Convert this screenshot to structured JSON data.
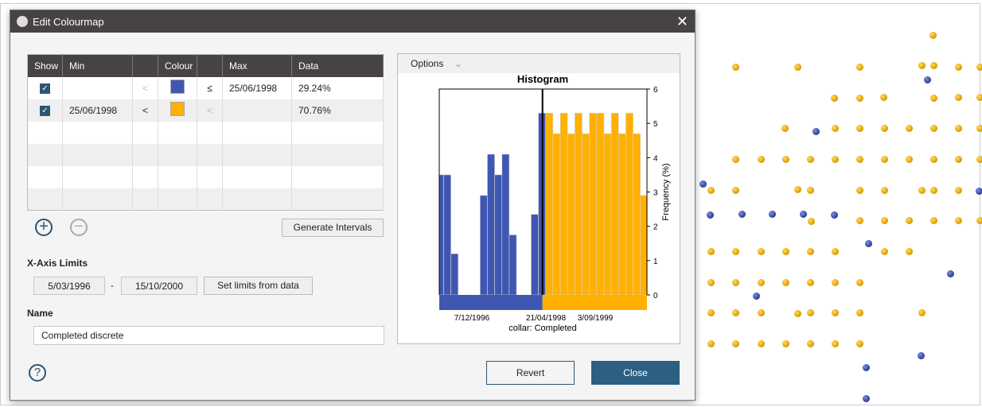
{
  "dialog": {
    "title": "Edit Colourmap",
    "close_label": "✕"
  },
  "table": {
    "headers": [
      "Show",
      "Min",
      "",
      "Colour",
      "",
      "Max",
      "Data"
    ],
    "rows": [
      {
        "show": true,
        "min": "",
        "min_op": "<",
        "colour": "#3f57b2",
        "max_op": "≤",
        "max": "25/06/1998",
        "data": "29.24%"
      },
      {
        "show": true,
        "min": "25/06/1998",
        "min_op": "<",
        "colour": "#ffb000",
        "max_op": "<",
        "max": "",
        "data": "70.76%"
      }
    ]
  },
  "buttons": {
    "add": "+",
    "remove": "−",
    "generate": "Generate Intervals",
    "set_limits": "Set limits from data",
    "revert": "Revert",
    "close": "Close",
    "help": "?"
  },
  "xaxis_limits": {
    "label": "X-Axis Limits",
    "min": "5/03/1996",
    "sep": "-",
    "max": "15/10/2000"
  },
  "name": {
    "label": "Name",
    "value": "Completed discrete"
  },
  "histogram": {
    "options_label": "Options"
  },
  "chart_data": {
    "type": "bar",
    "title": "Histogram",
    "xlabel": "collar: Completed",
    "ylabel": "Frequency (%)",
    "ylim": [
      0,
      6
    ],
    "yticks": [
      "0",
      "1",
      "2",
      "3",
      "4",
      "5",
      "6"
    ],
    "xticks": [
      "7/12/1996",
      "21/04/1998",
      "3/09/1999"
    ],
    "split_label": "25/06/1998",
    "values": [
      3.5,
      3.5,
      1.2,
      0,
      0,
      0,
      2.9,
      4.1,
      3.5,
      4.1,
      1.75,
      0,
      0,
      2.35,
      5.3,
      5.3,
      4.7,
      5.3,
      4.7,
      5.3,
      4.7,
      5.3,
      5.3,
      4.7,
      5.3,
      4.7,
      5.3,
      4.7,
      2.9
    ],
    "colors": [
      "#3f57b2",
      "#ffb000"
    ],
    "split_fraction": 0.497
  }
}
